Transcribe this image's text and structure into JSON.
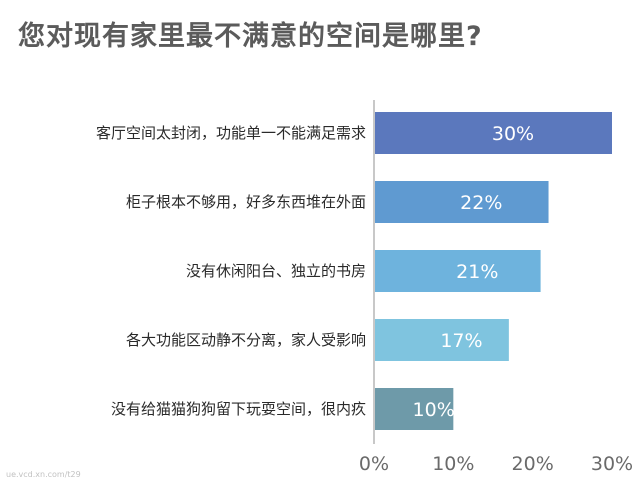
{
  "chart_data": {
    "type": "bar",
    "orientation": "horizontal",
    "title": "您对现有家里最不满意的空间是哪里?",
    "categories": [
      "客厅空间太封闭，功能单一不能满足需求",
      "柜子根本不够用，好多东西堆在外面",
      "没有休闲阳台、独立的书房",
      "各大功能区动静不分离，家人受影响",
      "没有给猫猫狗狗留下玩耍空间，很内疚"
    ],
    "values": [
      30,
      22,
      21,
      17,
      10
    ],
    "value_labels": [
      "30%",
      "22%",
      "21%",
      "17%",
      "10%"
    ],
    "bar_colors": [
      "#5b78bd",
      "#5f9ad1",
      "#6eb3dd",
      "#7fc4df",
      "#6e9aa9"
    ],
    "xlim": [
      0,
      30
    ],
    "xticks": [
      0,
      10,
      20,
      30
    ],
    "xtick_labels": [
      "0%",
      "10%",
      "20%",
      "30%"
    ],
    "xlabel": "",
    "ylabel": "",
    "grid": false,
    "legend": "none"
  },
  "watermark": "ue.vcd.xn.com/t29"
}
